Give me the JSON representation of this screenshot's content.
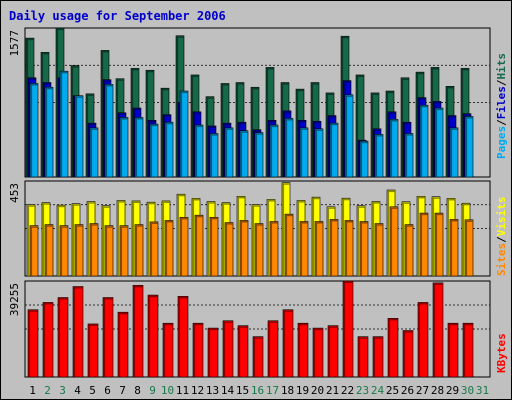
{
  "title": "Daily usage for September 2006",
  "colors": {
    "hits": "#166a4a",
    "files": "#0000cc",
    "pages": "#00aaee",
    "visits": "#ffff00",
    "sites": "#ff8800",
    "kbytes": "#ff0000",
    "weekend_day": "#1a7a4a",
    "weekday_day": "#000000"
  },
  "legend": {
    "top": [
      "Pages",
      "Files",
      "Hits"
    ],
    "middle": [
      "Sites",
      "Visits"
    ],
    "bottom": [
      "KBytes"
    ]
  },
  "chart_data": [
    {
      "type": "bar",
      "name": "Hits / Files / Pages",
      "categories": [
        "1",
        "2",
        "3",
        "4",
        "5",
        "6",
        "7",
        "8",
        "9",
        "10",
        "11",
        "12",
        "13",
        "14",
        "15",
        "16",
        "17",
        "18",
        "19",
        "20",
        "21",
        "22",
        "23",
        "24",
        "25",
        "26",
        "27",
        "28",
        "29",
        "30",
        "31"
      ],
      "ymax_label": "1577",
      "ylim": [
        0,
        1577
      ],
      "series": [
        {
          "name": "Hits",
          "values": [
            1470,
            1320,
            1577,
            1180,
            880,
            1340,
            1040,
            1150,
            1130,
            940,
            1495,
            1080,
            850,
            990,
            1000,
            950,
            1160,
            1000,
            930,
            1000,
            890,
            1490,
            1080,
            890,
            910,
            1050,
            1110,
            1160,
            960,
            1150,
            0
          ]
        },
        {
          "name": "Files",
          "values": [
            1050,
            1000,
            1050,
            860,
            570,
            1030,
            680,
            730,
            600,
            660,
            790,
            690,
            540,
            570,
            580,
            500,
            600,
            700,
            600,
            590,
            650,
            1020,
            390,
            510,
            690,
            580,
            840,
            800,
            650,
            670,
            0
          ]
        },
        {
          "name": "Pages",
          "values": [
            990,
            950,
            1120,
            860,
            520,
            980,
            630,
            630,
            560,
            580,
            910,
            550,
            460,
            520,
            490,
            470,
            550,
            620,
            520,
            510,
            570,
            870,
            380,
            450,
            610,
            460,
            760,
            730,
            520,
            640,
            0
          ]
        }
      ]
    },
    {
      "type": "bar",
      "name": "Visits / Sites",
      "categories": [
        "1",
        "2",
        "3",
        "4",
        "5",
        "6",
        "7",
        "8",
        "9",
        "10",
        "11",
        "12",
        "13",
        "14",
        "15",
        "16",
        "17",
        "18",
        "19",
        "20",
        "21",
        "22",
        "23",
        "24",
        "25",
        "26",
        "27",
        "28",
        "29",
        "30",
        "31"
      ],
      "ymax_label": "453",
      "ylim": [
        0,
        453
      ],
      "series": [
        {
          "name": "Visits",
          "values": [
            340,
            350,
            338,
            345,
            355,
            335,
            360,
            358,
            352,
            358,
            390,
            370,
            355,
            350,
            380,
            340,
            365,
            445,
            360,
            376,
            330,
            371,
            335,
            355,
            410,
            354,
            380,
            378,
            370,
            347,
            0
          ]
        },
        {
          "name": "Sites",
          "values": [
            240,
            245,
            240,
            245,
            250,
            240,
            240,
            245,
            258,
            265,
            280,
            290,
            280,
            255,
            265,
            250,
            260,
            295,
            260,
            260,
            270,
            265,
            260,
            250,
            330,
            245,
            300,
            300,
            270,
            268,
            0
          ]
        }
      ]
    },
    {
      "type": "bar",
      "name": "KBytes",
      "categories": [
        "1",
        "2",
        "3",
        "4",
        "5",
        "6",
        "7",
        "8",
        "9",
        "10",
        "11",
        "12",
        "13",
        "14",
        "15",
        "16",
        "17",
        "18",
        "19",
        "20",
        "21",
        "22",
        "23",
        "24",
        "25",
        "26",
        "27",
        "28",
        "29",
        "30",
        "31"
      ],
      "ymax_label": "39255",
      "ylim": [
        0,
        39255
      ],
      "series": [
        {
          "name": "KBytes",
          "values": [
            27500,
            30500,
            32500,
            37000,
            21700,
            32500,
            26500,
            37500,
            33500,
            22000,
            33000,
            22000,
            20000,
            23000,
            21000,
            16500,
            23000,
            27500,
            22000,
            20000,
            21000,
            39255,
            16500,
            16500,
            24000,
            19000,
            30500,
            38500,
            22000,
            22000,
            0
          ]
        }
      ]
    }
  ]
}
